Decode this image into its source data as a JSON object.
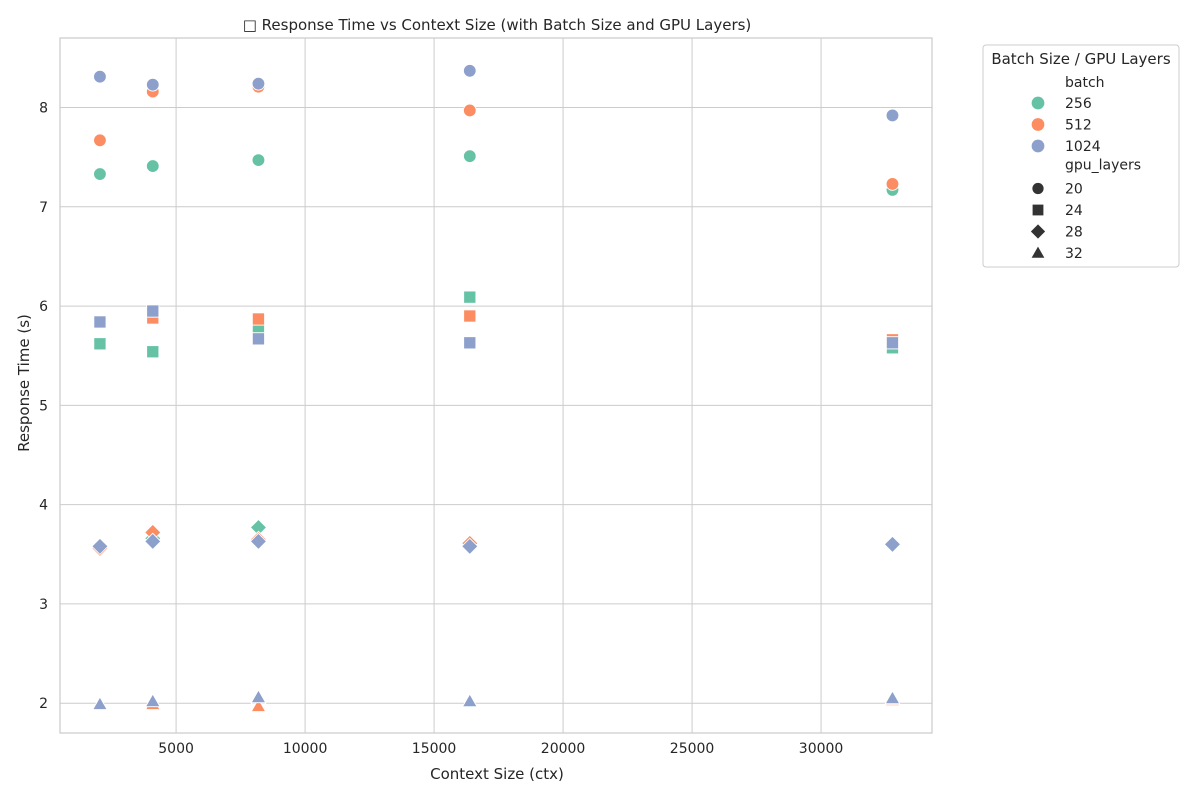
{
  "chart_data": {
    "type": "scatter",
    "title": "□ Response Time vs Context Size (with Batch Size and GPU Layers)",
    "xlabel": "Context Size (ctx)",
    "ylabel": "Response Time (s)",
    "xlim": [
      500,
      34300
    ],
    "ylim": [
      1.7,
      8.7
    ],
    "xticks": [
      5000,
      10000,
      15000,
      20000,
      25000,
      30000
    ],
    "yticks": [
      2,
      3,
      4,
      5,
      6,
      7,
      8
    ],
    "grid": true,
    "legend": {
      "title": "Batch Size / GPU Layers",
      "placement": "outside-upper-right",
      "hue_title": "batch",
      "style_title": "gpu_layers",
      "hue_entries": [
        {
          "label": "256",
          "color": "#66c2a5"
        },
        {
          "label": "512",
          "color": "#fc8d62"
        },
        {
          "label": "1024",
          "color": "#8da0cb"
        }
      ],
      "style_entries": [
        {
          "label": "20",
          "marker": "circle"
        },
        {
          "label": "24",
          "marker": "square"
        },
        {
          "label": "28",
          "marker": "diamond"
        },
        {
          "label": "32",
          "marker": "triangle"
        }
      ]
    },
    "series": [
      {
        "batch": "256",
        "gpu_layers": "20",
        "color": "#66c2a5",
        "marker": "circle",
        "points": [
          [
            2048,
            7.33
          ],
          [
            4096,
            7.41
          ],
          [
            8192,
            7.47
          ],
          [
            16384,
            7.51
          ],
          [
            32768,
            7.17
          ]
        ]
      },
      {
        "batch": "512",
        "gpu_layers": "20",
        "color": "#fc8d62",
        "marker": "circle",
        "points": [
          [
            2048,
            7.67
          ],
          [
            4096,
            8.16
          ],
          [
            8192,
            8.21
          ],
          [
            16384,
            7.97
          ],
          [
            32768,
            7.23
          ]
        ]
      },
      {
        "batch": "1024",
        "gpu_layers": "20",
        "color": "#8da0cb",
        "marker": "circle",
        "points": [
          [
            2048,
            8.31
          ],
          [
            4096,
            8.23
          ],
          [
            8192,
            8.24
          ],
          [
            16384,
            8.37
          ],
          [
            32768,
            7.92
          ]
        ]
      },
      {
        "batch": "256",
        "gpu_layers": "24",
        "color": "#66c2a5",
        "marker": "square",
        "points": [
          [
            2048,
            5.62
          ],
          [
            4096,
            5.54
          ],
          [
            8192,
            5.77
          ],
          [
            16384,
            6.09
          ],
          [
            32768,
            5.58
          ]
        ]
      },
      {
        "batch": "512",
        "gpu_layers": "24",
        "color": "#fc8d62",
        "marker": "square",
        "points": [
          [
            2048,
            5.84
          ],
          [
            4096,
            5.88
          ],
          [
            8192,
            5.87
          ],
          [
            16384,
            5.9
          ],
          [
            32768,
            5.66
          ]
        ]
      },
      {
        "batch": "1024",
        "gpu_layers": "24",
        "color": "#8da0cb",
        "marker": "square",
        "points": [
          [
            2048,
            5.84
          ],
          [
            4096,
            5.95
          ],
          [
            8192,
            5.67
          ],
          [
            16384,
            5.63
          ],
          [
            32768,
            5.63
          ]
        ]
      },
      {
        "batch": "256",
        "gpu_layers": "28",
        "color": "#66c2a5",
        "marker": "diamond",
        "points": [
          [
            2048,
            3.57
          ],
          [
            4096,
            3.66
          ],
          [
            8192,
            3.77
          ],
          [
            16384,
            3.59
          ],
          [
            32768,
            3.6
          ]
        ]
      },
      {
        "batch": "512",
        "gpu_layers": "28",
        "color": "#fc8d62",
        "marker": "diamond",
        "points": [
          [
            2048,
            3.56
          ],
          [
            4096,
            3.72
          ],
          [
            8192,
            3.65
          ],
          [
            16384,
            3.61
          ],
          [
            32768,
            3.6
          ]
        ]
      },
      {
        "batch": "1024",
        "gpu_layers": "28",
        "color": "#8da0cb",
        "marker": "diamond",
        "points": [
          [
            2048,
            3.58
          ],
          [
            4096,
            3.63
          ],
          [
            8192,
            3.63
          ],
          [
            16384,
            3.58
          ],
          [
            32768,
            3.6
          ]
        ]
      },
      {
        "batch": "256",
        "gpu_layers": "32",
        "color": "#66c2a5",
        "marker": "triangle",
        "points": [
          [
            2048,
            1.99
          ],
          [
            4096,
            2.0
          ],
          [
            8192,
            2.05
          ],
          [
            16384,
            2.02
          ],
          [
            32768,
            2.03
          ]
        ]
      },
      {
        "batch": "512",
        "gpu_layers": "32",
        "color": "#fc8d62",
        "marker": "triangle",
        "points": [
          [
            2048,
            1.99
          ],
          [
            4096,
            1.99
          ],
          [
            8192,
            1.97
          ],
          [
            16384,
            2.02
          ],
          [
            32768,
            2.04
          ]
        ]
      },
      {
        "batch": "1024",
        "gpu_layers": "32",
        "color": "#8da0cb",
        "marker": "triangle",
        "points": [
          [
            2048,
            1.99
          ],
          [
            4096,
            2.02
          ],
          [
            8192,
            2.06
          ],
          [
            16384,
            2.02
          ],
          [
            32768,
            2.05
          ]
        ]
      }
    ]
  }
}
